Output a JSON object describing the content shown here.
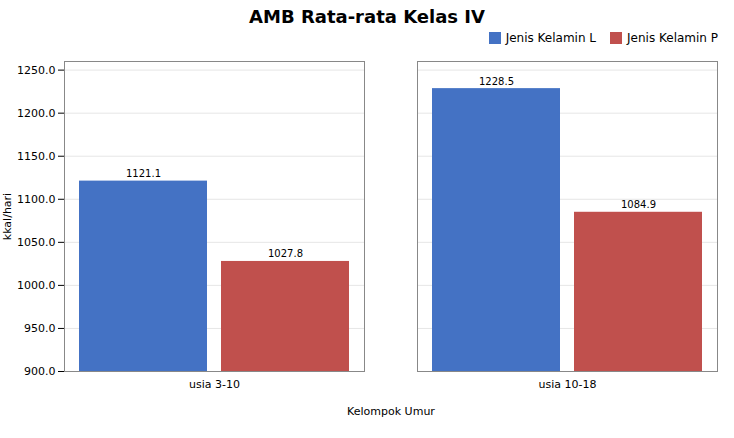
{
  "chart_data": {
    "type": "bar",
    "title": "AMB Rata-rata Kelas IV",
    "xlabel": "Kelompok Umur",
    "ylabel": "kkal/hari",
    "categories": [
      "usia 3-10",
      "usia 10-18"
    ],
    "series": [
      {
        "name": "Jenis Kelamin L",
        "color": "#4472C4",
        "values": [
          1121.1,
          1228.5
        ]
      },
      {
        "name": "Jenis Kelamin P",
        "color": "#C0504D",
        "values": [
          1027.8,
          1084.9
        ]
      }
    ],
    "ylim": [
      900.0,
      1260.0
    ],
    "yticks": [
      {
        "value": 900.0,
        "label": "900.0"
      },
      {
        "value": 950.0,
        "label": "950.0"
      },
      {
        "value": 1000.0,
        "label": "1000.0"
      },
      {
        "value": 1050.0,
        "label": "1050.0"
      },
      {
        "value": 1100.0,
        "label": "1100.0"
      },
      {
        "value": 1150.0,
        "label": "1150.0"
      },
      {
        "value": 1200.0,
        "label": "1200.0"
      },
      {
        "value": 1250.0,
        "label": "1250.0"
      }
    ],
    "grid": true,
    "legend": "upper right",
    "data_labels": true
  }
}
